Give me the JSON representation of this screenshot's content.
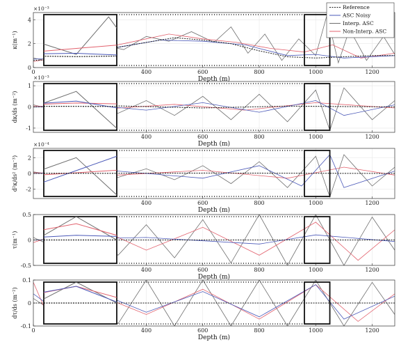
{
  "colors": {
    "reference": "#1a1a1a",
    "asc_noisy": "#6e6e6e",
    "interp_asc": "#4a58b8",
    "non_interp_asc": "#e2606c"
  },
  "legend": {
    "reference": "Reference",
    "asc_noisy": "ASC Noisy",
    "interp_asc": "Interp. ASC",
    "non_interp_asc": "Non-Interp. ASC"
  },
  "chart_data": [
    {
      "type": "line",
      "panel": "kappa",
      "ylabel": "κ(m⁻¹)",
      "exponent": "×10⁻³",
      "xlabel": "Depth (m)",
      "xlim": [
        0,
        1280
      ],
      "ylim": [
        0,
        4.6
      ],
      "yticks": [
        {
          "v": 0,
          "t": "0"
        },
        {
          "v": 2,
          "t": "2"
        },
        {
          "v": 4,
          "t": "4"
        }
      ],
      "xticks": [
        {
          "v": 0,
          "t": "0"
        },
        {
          "v": 400,
          "t": "400"
        },
        {
          "v": 600,
          "t": "600"
        },
        {
          "v": 800,
          "t": "800"
        },
        {
          "v": 1000,
          "t": "1000"
        },
        {
          "v": 1200,
          "t": "1200"
        }
      ],
      "zoom_window": [
        960,
        1050
      ],
      "reference": [
        [
          0,
          0.6
        ],
        [
          100,
          0.7
        ],
        [
          200,
          1.0
        ],
        [
          300,
          1.7
        ],
        [
          400,
          2.1
        ],
        [
          500,
          2.5
        ],
        [
          600,
          2.3
        ],
        [
          700,
          2.0
        ],
        [
          800,
          1.4
        ],
        [
          900,
          0.9
        ],
        [
          1000,
          0.8
        ],
        [
          1100,
          0.9
        ],
        [
          1200,
          1.0
        ],
        [
          1280,
          1.0
        ]
      ],
      "asc_noisy": [
        [
          0,
          0.8
        ],
        [
          80,
          0.4
        ],
        [
          160,
          1.2
        ],
        [
          240,
          1.9
        ],
        [
          320,
          1.5
        ],
        [
          400,
          2.6
        ],
        [
          480,
          2.2
        ],
        [
          560,
          3.0
        ],
        [
          640,
          2.1
        ],
        [
          700,
          3.4
        ],
        [
          760,
          1.2
        ],
        [
          820,
          2.8
        ],
        [
          880,
          0.6
        ],
        [
          940,
          2.4
        ],
        [
          1000,
          1.0
        ],
        [
          1040,
          4.4
        ],
        [
          1080,
          0.4
        ],
        [
          1120,
          3.2
        ],
        [
          1180,
          0.6
        ],
        [
          1240,
          2.6
        ],
        [
          1280,
          1.1
        ]
      ],
      "interp_asc": [
        [
          0,
          0.7
        ],
        [
          150,
          0.9
        ],
        [
          300,
          1.7
        ],
        [
          450,
          2.3
        ],
        [
          600,
          2.2
        ],
        [
          750,
          1.9
        ],
        [
          900,
          1.0
        ],
        [
          1000,
          1.1
        ],
        [
          1100,
          0.8
        ],
        [
          1280,
          1.0
        ]
      ],
      "non_interp_asc": [
        [
          0,
          0.5
        ],
        [
          120,
          1.0
        ],
        [
          240,
          1.6
        ],
        [
          360,
          2.2
        ],
        [
          480,
          2.8
        ],
        [
          600,
          2.4
        ],
        [
          720,
          2.1
        ],
        [
          840,
          1.6
        ],
        [
          960,
          1.3
        ],
        [
          1060,
          1.9
        ],
        [
          1160,
          0.8
        ],
        [
          1280,
          1.2
        ]
      ]
    },
    {
      "type": "line",
      "panel": "dkappa_ds",
      "ylabel": "dκ/ds (m⁻²)",
      "exponent": "×10⁻³",
      "xlabel": "Depth (m)",
      "xlim": [
        0,
        1280
      ],
      "ylim": [
        -1.2,
        1.2
      ],
      "yticks": [
        {
          "v": -1,
          "t": "-1"
        },
        {
          "v": 0,
          "t": "0"
        },
        {
          "v": 1,
          "t": "1"
        }
      ],
      "xticks": [
        {
          "v": 400,
          "t": "400"
        },
        {
          "v": 600,
          "t": "600"
        },
        {
          "v": 800,
          "t": "800"
        },
        {
          "v": 1000,
          "t": "1000"
        },
        {
          "v": 1200,
          "t": "1200"
        }
      ],
      "zoom_window": [
        960,
        1050
      ],
      "reference": [
        [
          0,
          0
        ],
        [
          300,
          0.05
        ],
        [
          600,
          -0.05
        ],
        [
          900,
          0.04
        ],
        [
          1280,
          0
        ]
      ],
      "asc_noisy": [
        [
          0,
          0.1
        ],
        [
          100,
          -0.2
        ],
        [
          200,
          0.2
        ],
        [
          300,
          -0.3
        ],
        [
          400,
          0.3
        ],
        [
          500,
          -0.4
        ],
        [
          600,
          0.5
        ],
        [
          700,
          -0.6
        ],
        [
          800,
          0.6
        ],
        [
          900,
          -0.7
        ],
        [
          1000,
          0.8
        ],
        [
          1050,
          -1.1
        ],
        [
          1100,
          0.9
        ],
        [
          1200,
          -0.6
        ],
        [
          1280,
          0.3
        ]
      ],
      "interp_asc": [
        [
          0,
          0
        ],
        [
          200,
          0.1
        ],
        [
          400,
          -0.15
        ],
        [
          600,
          0.2
        ],
        [
          800,
          -0.25
        ],
        [
          1000,
          0.3
        ],
        [
          1100,
          -0.4
        ],
        [
          1280,
          0.1
        ]
      ],
      "non_interp_asc": [
        [
          0,
          0.05
        ],
        [
          250,
          -0.1
        ],
        [
          500,
          0.12
        ],
        [
          750,
          -0.15
        ],
        [
          1000,
          0.2
        ],
        [
          1280,
          -0.05
        ]
      ]
    },
    {
      "type": "line",
      "panel": "d2kappa_ds2",
      "ylabel": "d²κ/ds² (m⁻³)",
      "exponent": "×10⁻⁴",
      "xlabel": "Depth (m)",
      "xlim": [
        0,
        1280
      ],
      "ylim": [
        -3.2,
        3.2
      ],
      "yticks": [
        {
          "v": -2,
          "t": "-2"
        },
        {
          "v": 0,
          "t": "0"
        },
        {
          "v": 2,
          "t": "2"
        }
      ],
      "xticks": [
        {
          "v": 400,
          "t": "400"
        },
        {
          "v": 600,
          "t": "600"
        },
        {
          "v": 800,
          "t": "800"
        },
        {
          "v": 1000,
          "t": "1000"
        },
        {
          "v": 1200,
          "t": "1200"
        }
      ],
      "zoom_window": [
        960,
        1050
      ],
      "reference": [
        [
          0,
          0
        ],
        [
          640,
          0.05
        ],
        [
          1280,
          0
        ]
      ],
      "asc_noisy": [
        [
          0,
          0.2
        ],
        [
          100,
          -0.3
        ],
        [
          200,
          0.4
        ],
        [
          300,
          -0.5
        ],
        [
          400,
          0.6
        ],
        [
          500,
          -0.8
        ],
        [
          600,
          1.0
        ],
        [
          700,
          -1.3
        ],
        [
          800,
          1.5
        ],
        [
          900,
          -1.8
        ],
        [
          1000,
          2.2
        ],
        [
          1050,
          -3.0
        ],
        [
          1100,
          2.4
        ],
        [
          1200,
          -1.6
        ],
        [
          1280,
          0.8
        ]
      ],
      "interp_asc": [
        [
          0,
          0
        ],
        [
          300,
          0.3
        ],
        [
          600,
          -0.6
        ],
        [
          800,
          1.0
        ],
        [
          950,
          -1.6
        ],
        [
          1050,
          2.4
        ],
        [
          1100,
          -1.8
        ],
        [
          1280,
          0.3
        ]
      ],
      "non_interp_asc": [
        [
          0,
          0.1
        ],
        [
          300,
          -0.2
        ],
        [
          600,
          0.4
        ],
        [
          900,
          -0.6
        ],
        [
          1100,
          0.8
        ],
        [
          1280,
          -0.2
        ]
      ]
    },
    {
      "type": "line",
      "panel": "tau",
      "ylabel": "τ(m⁻¹)",
      "exponent": "",
      "xlabel": "Depth (m)",
      "xlim": [
        0,
        1280
      ],
      "ylim": [
        -0.5,
        0.5
      ],
      "yticks": [
        {
          "v": -0.5,
          "t": "-0.5"
        },
        {
          "v": 0,
          "t": "0"
        },
        {
          "v": 0.5,
          "t": "0.5"
        }
      ],
      "xticks": [
        {
          "v": 400,
          "t": "400"
        },
        {
          "v": 600,
          "t": "600"
        },
        {
          "v": 800,
          "t": "800"
        },
        {
          "v": 1000,
          "t": "1000"
        },
        {
          "v": 1200,
          "t": "1200"
        }
      ],
      "zoom_window": [
        960,
        1050
      ],
      "reference": [
        [
          0,
          0
        ],
        [
          640,
          0
        ],
        [
          1280,
          0
        ]
      ],
      "asc_noisy": [
        [
          0,
          0.05
        ],
        [
          100,
          -0.2
        ],
        [
          200,
          0.25
        ],
        [
          300,
          -0.3
        ],
        [
          400,
          0.3
        ],
        [
          500,
          -0.35
        ],
        [
          600,
          0.4
        ],
        [
          700,
          -0.45
        ],
        [
          800,
          0.5
        ],
        [
          900,
          -0.5
        ],
        [
          1000,
          0.5
        ],
        [
          1100,
          -0.5
        ],
        [
          1200,
          0.45
        ],
        [
          1280,
          -0.2
        ]
      ],
      "interp_asc": [
        [
          0,
          0
        ],
        [
          400,
          0.05
        ],
        [
          800,
          -0.08
        ],
        [
          1000,
          0.1
        ],
        [
          1280,
          -0.03
        ]
      ],
      "non_interp_asc": [
        [
          0,
          -0.05
        ],
        [
          200,
          0.3
        ],
        [
          400,
          -0.2
        ],
        [
          600,
          0.25
        ],
        [
          800,
          -0.3
        ],
        [
          1000,
          0.35
        ],
        [
          1150,
          -0.4
        ],
        [
          1280,
          0.2
        ]
      ]
    },
    {
      "type": "line",
      "panel": "dtau_ds",
      "ylabel": "dτ/ds (m⁻²)",
      "exponent": "",
      "xlabel": "Depth (m)",
      "xlim": [
        0,
        1280
      ],
      "ylim": [
        -0.1,
        0.1
      ],
      "yticks": [
        {
          "v": -0.1,
          "t": "-0.1"
        },
        {
          "v": 0,
          "t": "0"
        },
        {
          "v": 0.1,
          "t": "0.1"
        }
      ],
      "xticks": [
        {
          "v": 0,
          "t": "0"
        },
        {
          "v": 400,
          "t": "400"
        },
        {
          "v": 600,
          "t": "600"
        },
        {
          "v": 800,
          "t": "800"
        },
        {
          "v": 1000,
          "t": "1000"
        },
        {
          "v": 1200,
          "t": "1200"
        }
      ],
      "zoom_window": [
        960,
        1050
      ],
      "reference": [
        [
          0,
          0
        ],
        [
          640,
          0
        ],
        [
          1280,
          0
        ]
      ],
      "asc_noisy": [
        [
          0,
          0.02
        ],
        [
          100,
          -0.06
        ],
        [
          200,
          0.08
        ],
        [
          300,
          -0.09
        ],
        [
          400,
          0.1
        ],
        [
          500,
          -0.1
        ],
        [
          600,
          0.1
        ],
        [
          700,
          -0.1
        ],
        [
          800,
          0.1
        ],
        [
          900,
          -0.1
        ],
        [
          1000,
          0.1
        ],
        [
          1100,
          -0.1
        ],
        [
          1200,
          0.09
        ],
        [
          1280,
          -0.05
        ]
      ],
      "interp_asc": [
        [
          0,
          0.04
        ],
        [
          100,
          -0.05
        ],
        [
          200,
          0.06
        ],
        [
          400,
          -0.04
        ],
        [
          600,
          0.05
        ],
        [
          800,
          -0.06
        ],
        [
          1000,
          0.08
        ],
        [
          1100,
          -0.07
        ],
        [
          1280,
          0.03
        ]
      ],
      "non_interp_asc": [
        [
          0,
          0.09
        ],
        [
          60,
          -0.08
        ],
        [
          200,
          0.05
        ],
        [
          400,
          -0.05
        ],
        [
          600,
          0.06
        ],
        [
          800,
          -0.07
        ],
        [
          1000,
          0.08
        ],
        [
          1150,
          -0.08
        ],
        [
          1280,
          0.04
        ]
      ]
    }
  ]
}
